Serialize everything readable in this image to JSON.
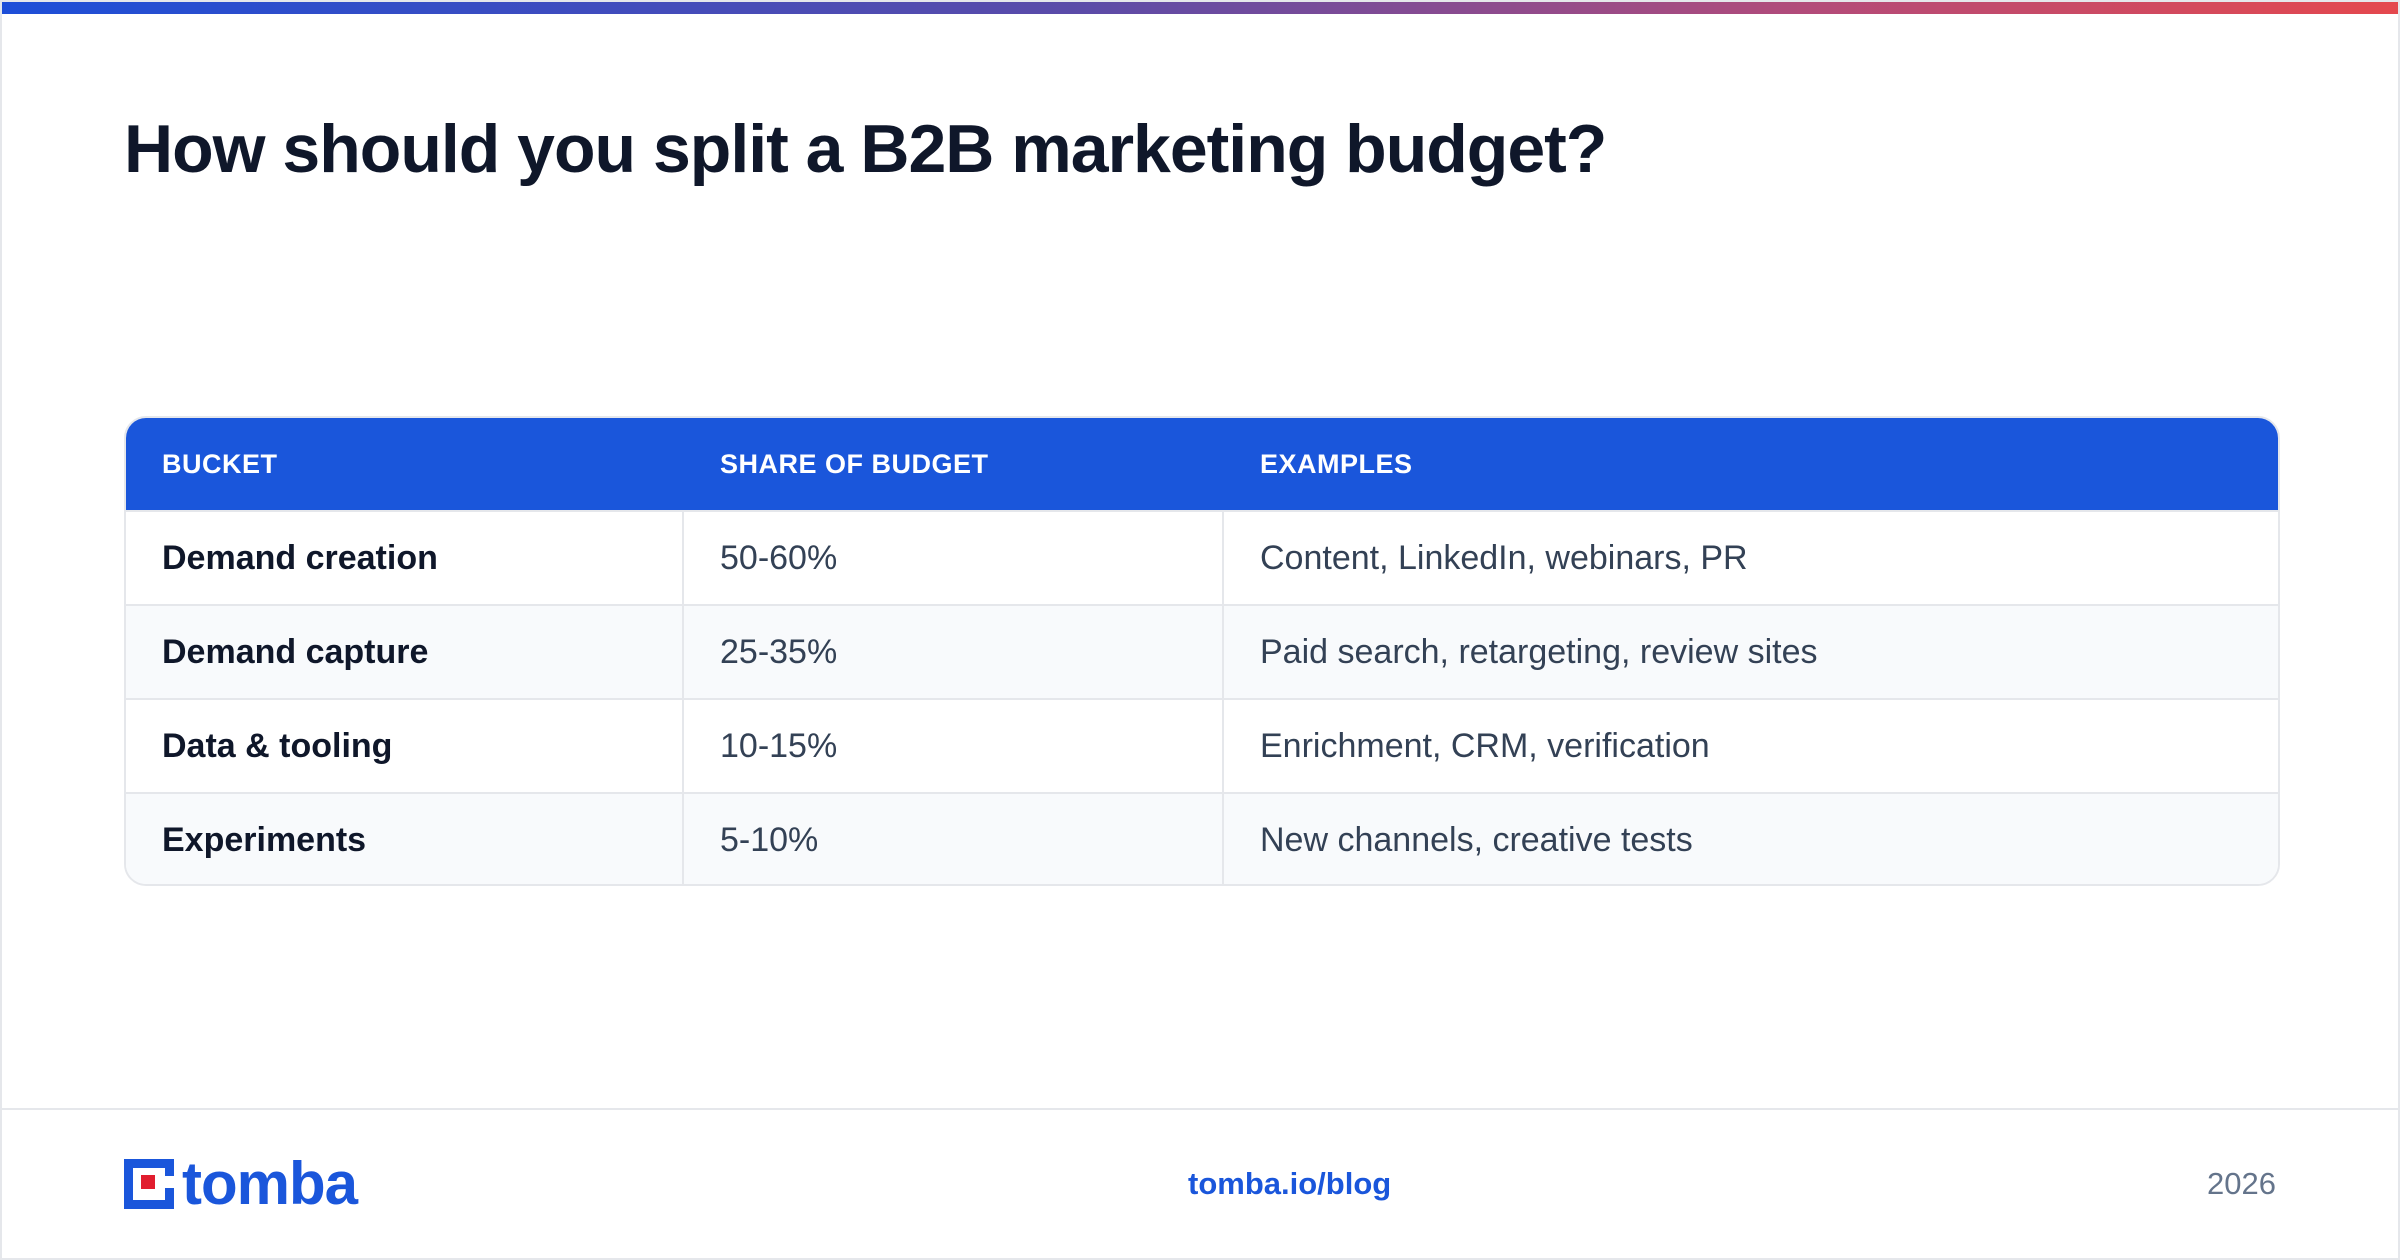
{
  "header": {
    "title": "How should you split a B2B marketing budget?"
  },
  "colors": {
    "accent_blue": "#1a56db",
    "accent_red": "#e5484d",
    "text_dark": "#0f172a",
    "text_body": "#334155",
    "text_muted": "#64748b"
  },
  "table": {
    "columns": [
      "BUCKET",
      "SHARE OF BUDGET",
      "EXAMPLES"
    ],
    "rows": [
      {
        "bucket": "Demand creation",
        "share": "50-60%",
        "examples": "Content, LinkedIn, webinars, PR"
      },
      {
        "bucket": "Demand capture",
        "share": "25-35%",
        "examples": "Paid search, retargeting, review sites"
      },
      {
        "bucket": "Data & tooling",
        "share": "10-15%",
        "examples": "Enrichment, CRM, verification"
      },
      {
        "bucket": "Experiments",
        "share": "5-10%",
        "examples": "New channels, creative tests"
      }
    ]
  },
  "footer": {
    "logo_text": "tomba",
    "logo_icon": "tomba-logo-icon",
    "link": "tomba.io/blog",
    "year": "2026"
  }
}
